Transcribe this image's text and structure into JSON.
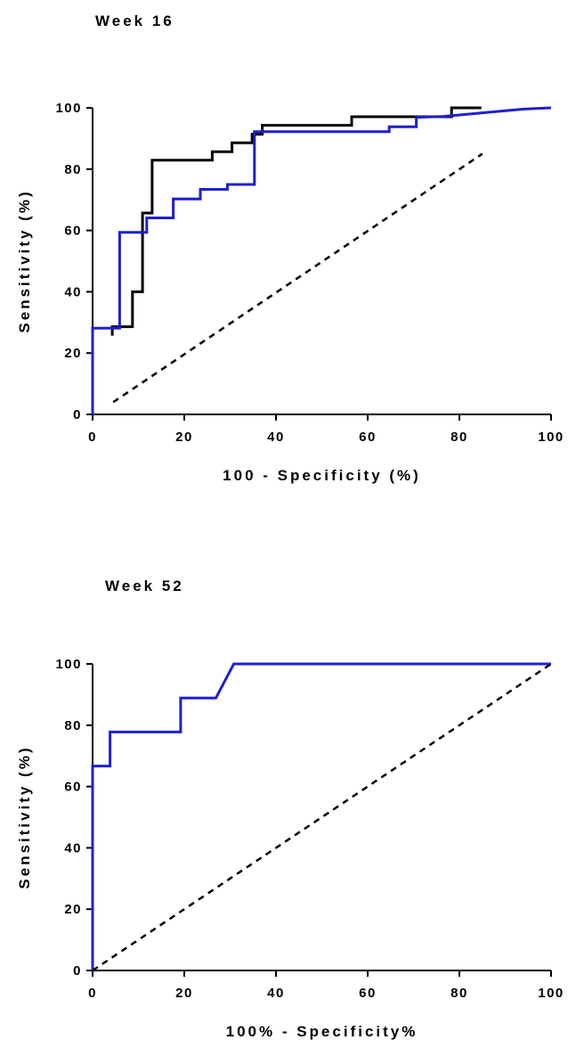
{
  "chart_data": [
    {
      "type": "line",
      "title": "Week 16",
      "xlabel": "100 - Specificity (%)",
      "ylabel": "Sensitivity (%)",
      "xlim": [
        0,
        100
      ],
      "ylim": [
        0,
        100
      ],
      "xticks": [
        "0",
        "20",
        "40",
        "60",
        "80",
        "100"
      ],
      "yticks": [
        "0",
        "20",
        "40",
        "60",
        "80",
        "100"
      ],
      "grid": false,
      "series": [
        {
          "color": "#000000",
          "style": "step",
          "points": [
            [
              4.3,
              25.7
            ],
            [
              4.3,
              28.6
            ],
            [
              8.7,
              28.6
            ],
            [
              8.7,
              40
            ],
            [
              10.9,
              40
            ],
            [
              10.9,
              65.7
            ],
            [
              13,
              65.7
            ],
            [
              13,
              82.9
            ],
            [
              26.1,
              82.9
            ],
            [
              26.1,
              85.7
            ],
            [
              30.4,
              85.7
            ],
            [
              30.4,
              88.6
            ],
            [
              34.8,
              88.6
            ],
            [
              34.8,
              91.4
            ],
            [
              37,
              91.4
            ],
            [
              37,
              94.3
            ],
            [
              56.5,
              94.3
            ],
            [
              56.5,
              97.1
            ],
            [
              78.3,
              97.1
            ],
            [
              78.3,
              100
            ],
            [
              84.8,
              100
            ]
          ]
        },
        {
          "color": "#1f1fd0",
          "style": "step",
          "points": [
            [
              0,
              0
            ],
            [
              0,
              28.1
            ],
            [
              5.9,
              28.1
            ],
            [
              5.9,
              59.4
            ],
            [
              11.8,
              59.4
            ],
            [
              11.8,
              64.1
            ],
            [
              17.6,
              64.1
            ],
            [
              17.6,
              70.3
            ],
            [
              23.5,
              70.3
            ],
            [
              23.5,
              73.4
            ],
            [
              29.4,
              73.4
            ],
            [
              29.4,
              75
            ],
            [
              35.3,
              75
            ],
            [
              35.3,
              92.2
            ],
            [
              64.7,
              92.2
            ],
            [
              64.7,
              93.8
            ],
            [
              70.6,
              93.8
            ],
            [
              70.6,
              96.9
            ],
            [
              76.5,
              97.2
            ],
            [
              82.4,
              98
            ],
            [
              88.2,
              98.8
            ],
            [
              94.1,
              99.6
            ],
            [
              100,
              100
            ]
          ]
        },
        {
          "color": "#000000",
          "style": "dashed",
          "points": [
            [
              4.5,
              4
            ],
            [
              85,
              85
            ]
          ]
        }
      ]
    },
    {
      "type": "line",
      "title": "Week 52",
      "xlabel": "100% - Specificity%",
      "ylabel": "Sensitivity (%)",
      "xlim": [
        0,
        100
      ],
      "ylim": [
        0,
        100
      ],
      "xticks": [
        "0",
        "20",
        "40",
        "60",
        "80",
        "100"
      ],
      "yticks": [
        "0",
        "20",
        "40",
        "60",
        "80",
        "100"
      ],
      "grid": false,
      "series": [
        {
          "color": "#1f1fd0",
          "style": "step",
          "points": [
            [
              0,
              0
            ],
            [
              0,
              66.7
            ],
            [
              3.8,
              66.7
            ],
            [
              3.8,
              77.8
            ],
            [
              19.2,
              77.8
            ],
            [
              19.2,
              88.9
            ],
            [
              26.9,
              88.9
            ],
            [
              30.8,
              100
            ],
            [
              100,
              100
            ]
          ]
        },
        {
          "color": "#000000",
          "style": "dashed",
          "points": [
            [
              0,
              0
            ],
            [
              100,
              100
            ]
          ]
        }
      ]
    }
  ]
}
